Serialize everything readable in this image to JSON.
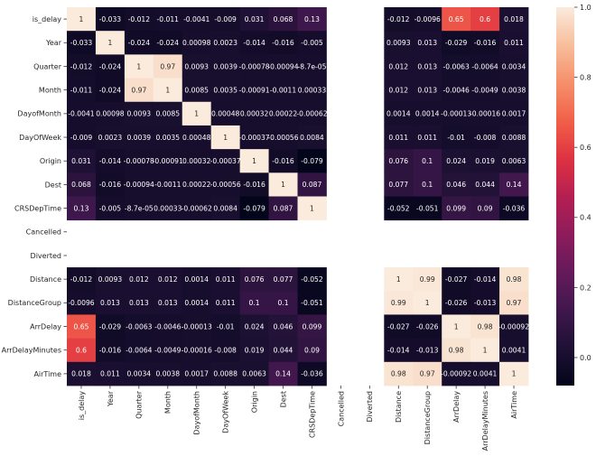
{
  "chart_data": {
    "type": "heatmap",
    "title": "",
    "xlabel": "",
    "ylabel": "",
    "colormap": "rocket",
    "annotated": true,
    "labels": [
      "is_delay",
      "Year",
      "Quarter",
      "Month",
      "DayofMonth",
      "DayOfWeek",
      "Origin",
      "Dest",
      "CRSDepTime",
      "Cancelled",
      "Diverted",
      "Distance",
      "DistanceGroup",
      "ArrDelay",
      "ArrDelayMinutes",
      "AirTime"
    ],
    "annotations": [
      [
        "1",
        "-0.033",
        "-0.012",
        "-0.011",
        "-0.0041",
        "-0.009",
        "0.031",
        "0.068",
        "0.13",
        null,
        null,
        "-0.012",
        "-0.0096",
        "0.65",
        "0.6",
        "0.018"
      ],
      [
        "-0.033",
        "1",
        "-0.024",
        "-0.024",
        "0.00098",
        "0.0023",
        "-0.014",
        "-0.016",
        "-0.005",
        null,
        null,
        "0.0093",
        "0.013",
        "-0.029",
        "-0.016",
        "0.011"
      ],
      [
        "-0.012",
        "-0.024",
        "1",
        "0.97",
        "0.0093",
        "0.0039",
        "-0.00078",
        "-0.00094",
        "-8.7e-05",
        null,
        null,
        "0.012",
        "0.013",
        "-0.0063",
        "-0.0064",
        "0.0034"
      ],
      [
        "-0.011",
        "-0.024",
        "0.97",
        "1",
        "0.0085",
        "0.0035",
        "-0.00091",
        "-0.0011",
        "0.00033",
        null,
        null,
        "0.012",
        "0.013",
        "-0.0046",
        "-0.0049",
        "0.0038"
      ],
      [
        "-0.0041",
        "0.00098",
        "0.0093",
        "0.0085",
        "1",
        "0.00048",
        "0.00032",
        "0.00022",
        "-0.00062",
        null,
        null,
        "0.0014",
        "0.0014",
        "-0.00013",
        "-0.00016",
        "0.0017"
      ],
      [
        "-0.009",
        "0.0023",
        "0.0039",
        "0.0035",
        "0.00048",
        "1",
        "-0.00037",
        "-0.00056",
        "0.0084",
        null,
        null,
        "0.011",
        "0.011",
        "-0.01",
        "-0.008",
        "0.0088"
      ],
      [
        "0.031",
        "-0.014",
        "-0.00078",
        "-0.00091",
        "0.00032",
        "-0.00037",
        "1",
        "-0.016",
        "-0.079",
        null,
        null,
        "0.076",
        "0.1",
        "0.024",
        "0.019",
        "0.0063"
      ],
      [
        "0.068",
        "-0.016",
        "-0.00094",
        "-0.0011",
        "0.00022",
        "-0.00056",
        "-0.016",
        "1",
        "0.087",
        null,
        null,
        "0.077",
        "0.1",
        "0.046",
        "0.044",
        "0.14"
      ],
      [
        "0.13",
        "-0.005",
        "-8.7e-05",
        "0.00033",
        "-0.00062",
        "0.0084",
        "-0.079",
        "0.087",
        "1",
        null,
        null,
        "-0.052",
        "-0.051",
        "0.099",
        "0.09",
        "-0.036"
      ],
      [
        null,
        null,
        null,
        null,
        null,
        null,
        null,
        null,
        null,
        null,
        null,
        null,
        null,
        null,
        null,
        null
      ],
      [
        null,
        null,
        null,
        null,
        null,
        null,
        null,
        null,
        null,
        null,
        null,
        null,
        null,
        null,
        null,
        null
      ],
      [
        "-0.012",
        "0.0093",
        "0.012",
        "0.012",
        "0.0014",
        "0.011",
        "0.076",
        "0.077",
        "-0.052",
        null,
        null,
        "1",
        "0.99",
        "-0.027",
        "-0.014",
        "0.98"
      ],
      [
        "-0.0096",
        "0.013",
        "0.013",
        "0.013",
        "0.0014",
        "0.011",
        "0.1",
        "0.1",
        "-0.051",
        null,
        null,
        "0.99",
        "1",
        "-0.026",
        "-0.013",
        "0.97"
      ],
      [
        "0.65",
        "-0.029",
        "-0.0063",
        "-0.0046",
        "-0.00013",
        "-0.01",
        "0.024",
        "0.046",
        "0.099",
        null,
        null,
        "-0.027",
        "-0.026",
        "1",
        "0.98",
        "-0.00092"
      ],
      [
        "0.6",
        "-0.016",
        "-0.0064",
        "-0.0049",
        "-0.00016",
        "-0.008",
        "0.019",
        "0.044",
        "0.09",
        null,
        null,
        "-0.014",
        "-0.013",
        "0.98",
        "1",
        "0.0041"
      ],
      [
        "0.018",
        "0.011",
        "0.0034",
        "0.0038",
        "0.0017",
        "0.0088",
        "0.0063",
        "0.14",
        "-0.036",
        null,
        null,
        "0.98",
        "0.97",
        "-0.00092",
        "0.0041",
        "1"
      ]
    ],
    "colorbar": {
      "vmin": -0.08,
      "vmax": 1.0,
      "ticks": [
        0.0,
        0.2,
        0.4,
        0.6,
        0.8,
        1.0
      ],
      "tick_labels": [
        "0.0",
        "0.2",
        "0.4",
        "0.6",
        "0.8",
        "1.0"
      ]
    },
    "missing_note": "Cancelled and Diverted rows/columns are empty (NaN)"
  }
}
